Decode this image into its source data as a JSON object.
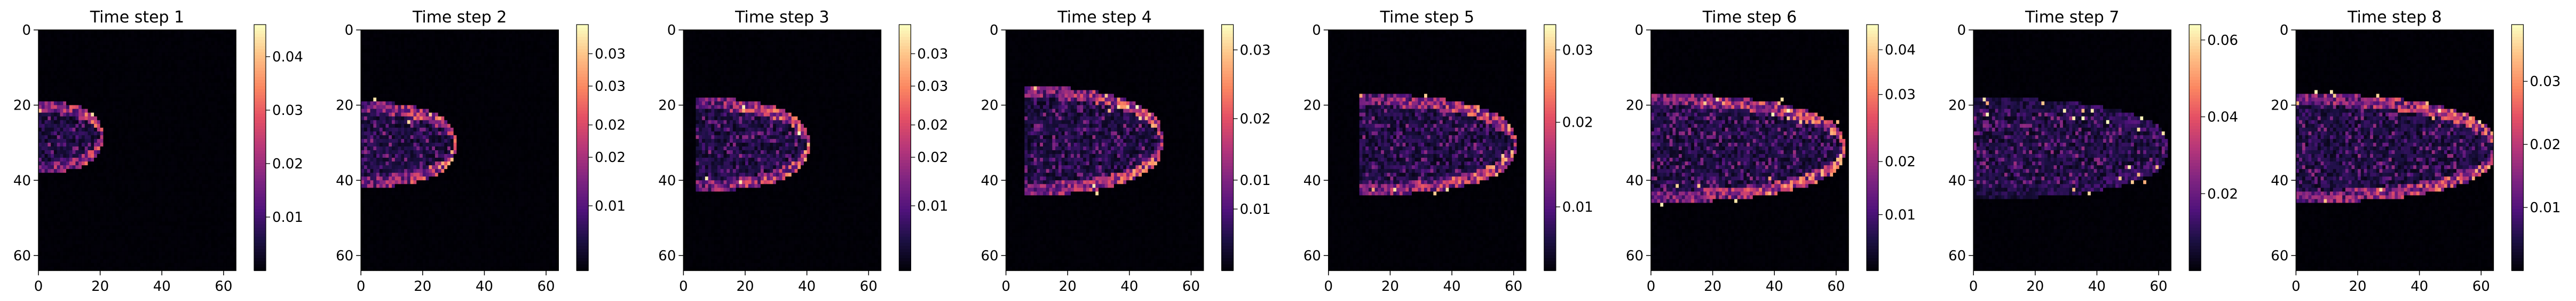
{
  "figure": {
    "background": "#ffffff"
  },
  "chart_data": [
    {
      "type": "heatmap",
      "title": "Time step 1",
      "grid_size": [
        64,
        64
      ],
      "xlim": [
        0,
        64
      ],
      "ylim": [
        64,
        0
      ],
      "x_ticks": [
        "0",
        "20",
        "40",
        "60"
      ],
      "y_ticks": [
        "0",
        "20",
        "40",
        "60"
      ],
      "grid": false,
      "colormap": "magma",
      "colorbar": {
        "min": 0.0,
        "max": 0.046,
        "ticks": [
          "0.01",
          "0.02",
          "0.03",
          "0.04"
        ],
        "tick_values": [
          0.01,
          0.02,
          0.03,
          0.04
        ]
      },
      "feature": {
        "x_start": 0,
        "x_tip": 20,
        "center_row": 28,
        "half_width": 7,
        "edge_value": 0.04
      }
    },
    {
      "type": "heatmap",
      "title": "Time step 2",
      "grid_size": [
        64,
        64
      ],
      "xlim": [
        0,
        64
      ],
      "ylim": [
        64,
        0
      ],
      "x_ticks": [
        "0",
        "20",
        "40",
        "60"
      ],
      "y_ticks": [
        "0",
        "20",
        "40",
        "60"
      ],
      "grid": false,
      "colormap": "magma",
      "colorbar": {
        "min": 0.0,
        "max": 0.038,
        "ticks": [
          "0.01",
          "0.02",
          "0.02",
          "0.03",
          "0.03"
        ],
        "tick_values": [
          0.01,
          0.0175,
          0.0225,
          0.0285,
          0.0335
        ]
      },
      "feature": {
        "x_start": 0,
        "x_tip": 30,
        "center_row": 30,
        "half_width": 9,
        "edge_value": 0.034
      }
    },
    {
      "type": "heatmap",
      "title": "Time step 3",
      "grid_size": [
        64,
        64
      ],
      "xlim": [
        0,
        64
      ],
      "ylim": [
        64,
        0
      ],
      "x_ticks": [
        "0",
        "20",
        "40",
        "60"
      ],
      "y_ticks": [
        "0",
        "20",
        "40",
        "60"
      ],
      "grid": false,
      "colormap": "magma",
      "colorbar": {
        "min": 0.0,
        "max": 0.038,
        "ticks": [
          "0.01",
          "0.02",
          "0.02",
          "0.03",
          "0.03"
        ],
        "tick_values": [
          0.01,
          0.0175,
          0.0225,
          0.0285,
          0.0335
        ]
      },
      "feature": {
        "x_start": 4,
        "x_tip": 40,
        "center_row": 30,
        "half_width": 10,
        "edge_value": 0.034
      }
    },
    {
      "type": "heatmap",
      "title": "Time step 4",
      "grid_size": [
        64,
        64
      ],
      "xlim": [
        0,
        64
      ],
      "ylim": [
        64,
        0
      ],
      "x_ticks": [
        "0",
        "20",
        "40",
        "60"
      ],
      "y_ticks": [
        "0",
        "20",
        "40",
        "60"
      ],
      "grid": false,
      "colormap": "magma",
      "colorbar": {
        "min": 0.0,
        "max": 0.034,
        "ticks": [
          "0.01",
          "0.01",
          "0.02",
          "0.03"
        ],
        "tick_values": [
          0.0085,
          0.0125,
          0.021,
          0.0305
        ]
      },
      "feature": {
        "x_start": 6,
        "x_tip": 50,
        "center_row": 29,
        "half_width": 12,
        "edge_value": 0.031
      }
    },
    {
      "type": "heatmap",
      "title": "Time step 5",
      "grid_size": [
        64,
        64
      ],
      "xlim": [
        0,
        64
      ],
      "ylim": [
        64,
        0
      ],
      "x_ticks": [
        "0",
        "20",
        "40",
        "60"
      ],
      "y_ticks": [
        "0",
        "20",
        "40",
        "60"
      ],
      "grid": false,
      "colormap": "magma",
      "colorbar": {
        "min": 0.0,
        "max": 0.034,
        "ticks": [
          "0.01",
          "0.02",
          "0.03"
        ],
        "tick_values": [
          0.0088,
          0.0205,
          0.0305
        ]
      },
      "feature": {
        "x_start": 10,
        "x_tip": 60,
        "center_row": 30,
        "half_width": 11,
        "edge_value": 0.031
      }
    },
    {
      "type": "heatmap",
      "title": "Time step 6",
      "grid_size": [
        64,
        64
      ],
      "xlim": [
        0,
        64
      ],
      "ylim": [
        64,
        0
      ],
      "x_ticks": [
        "0",
        "20",
        "40",
        "60"
      ],
      "y_ticks": [
        "0",
        "20",
        "40",
        "60"
      ],
      "grid": false,
      "colormap": "magma",
      "colorbar": {
        "min": 0.0,
        "max": 0.044,
        "ticks": [
          "0.01",
          "0.02",
          "0.03",
          "0.04"
        ],
        "tick_values": [
          0.01,
          0.0195,
          0.0315,
          0.0395
        ]
      },
      "feature": {
        "x_start": 0,
        "x_tip": 62,
        "center_row": 31,
        "half_width": 12,
        "edge_value": 0.04
      }
    },
    {
      "type": "heatmap",
      "title": "Time step 7",
      "grid_size": [
        64,
        64
      ],
      "xlim": [
        0,
        64
      ],
      "ylim": [
        64,
        0
      ],
      "x_ticks": [
        "0",
        "20",
        "40",
        "60"
      ],
      "y_ticks": [
        "0",
        "20",
        "40",
        "60"
      ],
      "grid": false,
      "colormap": "magma",
      "colorbar": {
        "min": 0.0,
        "max": 0.064,
        "ticks": [
          "0.02",
          "0.04",
          "0.06"
        ],
        "tick_values": [
          0.02,
          0.04,
          0.06
        ]
      },
      "feature": {
        "x_start": 0,
        "x_tip": 62,
        "center_row": 31,
        "half_width": 11,
        "edge_value": 0.02
      }
    },
    {
      "type": "heatmap",
      "title": "Time step 8",
      "grid_size": [
        64,
        64
      ],
      "xlim": [
        0,
        64
      ],
      "ylim": [
        64,
        0
      ],
      "x_ticks": [
        "0",
        "20",
        "40",
        "60"
      ],
      "y_ticks": [
        "0",
        "20",
        "40",
        "60"
      ],
      "grid": false,
      "colormap": "magma",
      "colorbar": {
        "min": 0.0,
        "max": 0.039,
        "ticks": [
          "0.01",
          "0.02",
          "0.03"
        ],
        "tick_values": [
          0.01,
          0.02,
          0.03
        ]
      },
      "feature": {
        "x_start": 0,
        "x_tip": 64,
        "center_row": 31,
        "half_width": 12,
        "edge_value": 0.035
      }
    }
  ]
}
